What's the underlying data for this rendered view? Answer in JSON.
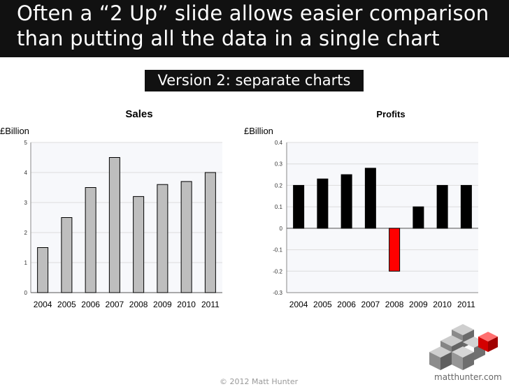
{
  "slide": {
    "title_line1": "Often a “2 Up” slide allows easier comparison",
    "title_line2": "than putting all the data in a single chart",
    "subtitle": "Version 2: separate charts",
    "copyright": "© 2012 Matt Hunter",
    "logo_text": "matthunter.com"
  },
  "chart_data": [
    {
      "type": "bar",
      "title": "Sales",
      "ylabel": "£Billion",
      "categories": [
        "2004",
        "2005",
        "2006",
        "2007",
        "2008",
        "2009",
        "2010",
        "2011"
      ],
      "values": [
        1.5,
        2.5,
        3.5,
        4.5,
        3.2,
        3.6,
        3.7,
        4.0
      ],
      "ylim": [
        0,
        5
      ],
      "yticks": [
        0,
        1,
        2,
        3,
        4,
        5
      ],
      "bar_color": "#bebebe",
      "grid": true
    },
    {
      "type": "bar",
      "title": "Profits",
      "ylabel": "£Billion",
      "categories": [
        "2004",
        "2005",
        "2006",
        "2007",
        "2008",
        "2009",
        "2010",
        "2011"
      ],
      "values": [
        0.2,
        0.23,
        0.25,
        0.28,
        -0.2,
        0.1,
        0.2,
        0.2
      ],
      "ylim": [
        -0.3,
        0.4
      ],
      "yticks": [
        "-0.3",
        "-0.2",
        "-0.1",
        "0",
        "0.1",
        "0.2",
        "0.3",
        "0.4"
      ],
      "bar_color": "#000000",
      "negative_color": "#ff0000",
      "grid": true
    }
  ]
}
